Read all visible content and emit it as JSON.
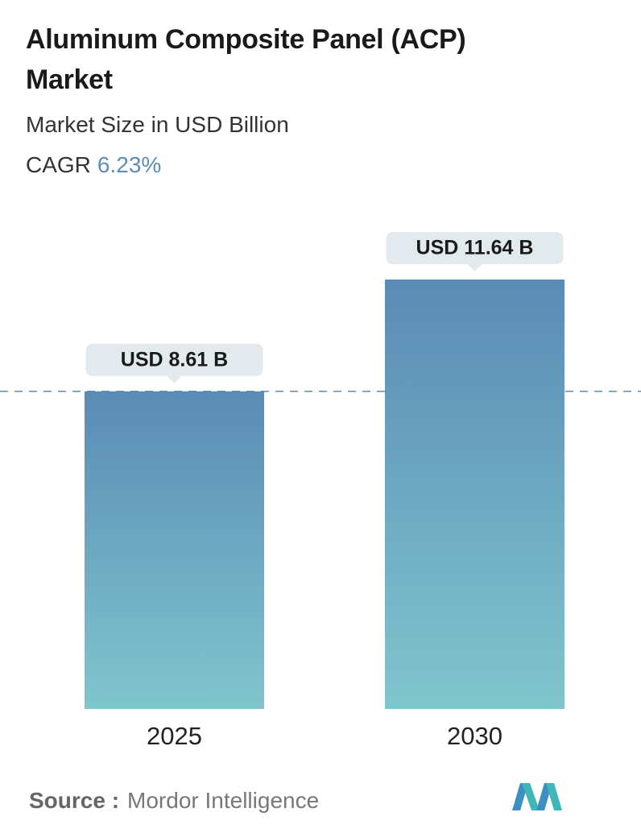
{
  "chart_data": {
    "type": "bar",
    "title": "Aluminum Composite Panel (ACP) Market",
    "subtitle": "Market Size in USD Billion",
    "cagr_label": "CAGR",
    "cagr_value": "6.23%",
    "categories": [
      "2025",
      "2030"
    ],
    "values": [
      8.61,
      11.64
    ],
    "value_labels": [
      "USD 8.61 B",
      "USD 11.64 B"
    ],
    "gradient": [
      "#5a8bb6",
      "#80c5cc"
    ]
  },
  "source": {
    "label": "Source :",
    "name": "Mordor Intelligence"
  }
}
